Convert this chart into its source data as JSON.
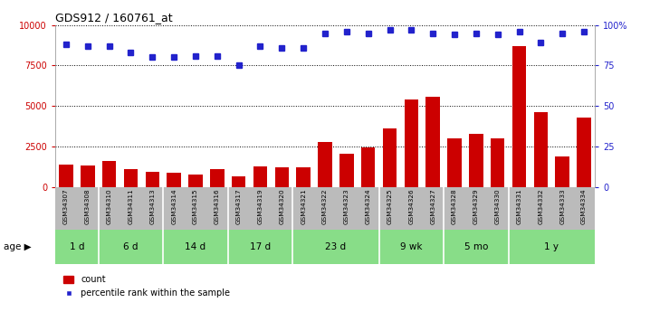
{
  "title": "GDS912 / 160761_at",
  "samples": [
    "GSM34307",
    "GSM34308",
    "GSM34310",
    "GSM34311",
    "GSM34313",
    "GSM34314",
    "GSM34315",
    "GSM34316",
    "GSM34317",
    "GSM34319",
    "GSM34320",
    "GSM34321",
    "GSM34322",
    "GSM34323",
    "GSM34324",
    "GSM34325",
    "GSM34326",
    "GSM34327",
    "GSM34328",
    "GSM34329",
    "GSM34330",
    "GSM34331",
    "GSM34332",
    "GSM34333",
    "GSM34334"
  ],
  "count": [
    1400,
    1350,
    1600,
    1100,
    950,
    900,
    800,
    1100,
    650,
    1300,
    1200,
    1250,
    2800,
    2050,
    2450,
    3600,
    5400,
    5600,
    3000,
    3300,
    3000,
    8700,
    4600,
    1900,
    4300
  ],
  "percentile": [
    88,
    87,
    87,
    83,
    80,
    80,
    81,
    81,
    75,
    87,
    86,
    86,
    95,
    96,
    95,
    97,
    97,
    95,
    94,
    95,
    94,
    96,
    89,
    95,
    96
  ],
  "age_groups": [
    {
      "label": "1 d",
      "start": 0,
      "end": 2
    },
    {
      "label": "6 d",
      "start": 2,
      "end": 5
    },
    {
      "label": "14 d",
      "start": 5,
      "end": 8
    },
    {
      "label": "17 d",
      "start": 8,
      "end": 11
    },
    {
      "label": "23 d",
      "start": 11,
      "end": 15
    },
    {
      "label": "9 wk",
      "start": 15,
      "end": 18
    },
    {
      "label": "5 mo",
      "start": 18,
      "end": 21
    },
    {
      "label": "1 y",
      "start": 21,
      "end": 25
    }
  ],
  "ylim_left": [
    0,
    10000
  ],
  "ylim_right": [
    0,
    100
  ],
  "yticks_left": [
    0,
    2500,
    5000,
    7500,
    10000
  ],
  "yticks_right": [
    0,
    25,
    50,
    75,
    100
  ],
  "bar_color": "#cc0000",
  "dot_color": "#2222cc",
  "age_bg_color": "#88dd88",
  "sample_bg_color": "#bbbbbb",
  "bar_width": 0.65,
  "age_label": "age"
}
